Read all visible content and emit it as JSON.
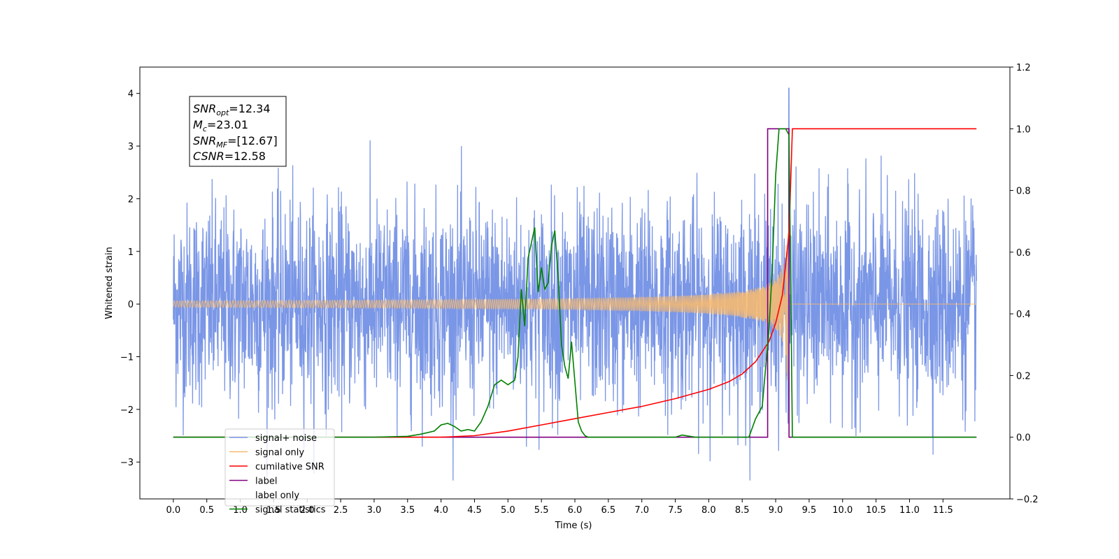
{
  "chart_data": {
    "type": "line",
    "xlabel": "Time (s)",
    "ylabel": "Whitened strain",
    "xlim": [
      -0.5,
      12.5
    ],
    "ylim": [
      -3.7,
      4.5
    ],
    "y2lim": [
      -0.2,
      1.2
    ],
    "x_ticks": [
      "0.0",
      "0.5",
      "1.0",
      "1.5",
      "2.0",
      "2.5",
      "3.0",
      "3.5",
      "4.0",
      "4.5",
      "5.0",
      "5.5",
      "6.0",
      "6.5",
      "7.0",
      "7.5",
      "8.0",
      "8.5",
      "9.0",
      "9.5",
      "10.0",
      "10.5",
      "11.0",
      "11.5"
    ],
    "y_ticks": [
      "−3",
      "−2",
      "−1",
      "0",
      "1",
      "2",
      "3",
      "4"
    ],
    "y2_ticks": [
      "−0.2",
      "0.0",
      "0.2",
      "0.4",
      "0.6",
      "0.8",
      "1.0",
      "1.2"
    ],
    "legend_position": "lower-left",
    "info_box": {
      "snr_opt": {
        "label": "SNR",
        "sub": "opt",
        "value": "=12.34"
      },
      "mc": {
        "label": "M",
        "sub": "c",
        "value": "=23.01"
      },
      "snr_mf": {
        "label": "SNR",
        "sub": "MF",
        "value": "=[12.67]"
      },
      "csnr": {
        "label": "CSNR",
        "sub": "",
        "value": "=12.58"
      }
    },
    "series": [
      {
        "name": "signal+ noise",
        "color": "#7a96e6",
        "axis": "left",
        "description_t_range": [
          0.0,
          12.0
        ],
        "amplitude_std": 0.95,
        "peak_t": 9.2,
        "peak_value": 4.1
      },
      {
        "name": "signal only",
        "color": "#f5b971",
        "axis": "left",
        "chirp_start": 5.0,
        "merger_t": 9.2,
        "max_amplitude": 1.8
      },
      {
        "name": "cumilative SNR",
        "color": "#ff0000",
        "axis": "right",
        "x": [
          0.0,
          4.0,
          4.5,
          5.0,
          5.5,
          6.0,
          6.5,
          7.0,
          7.5,
          8.0,
          8.3,
          8.5,
          8.7,
          8.9,
          9.0,
          9.1,
          9.2,
          9.25,
          12.0
        ],
        "y": [
          0.0,
          0.0,
          0.005,
          0.02,
          0.04,
          0.06,
          0.08,
          0.1,
          0.125,
          0.155,
          0.18,
          0.205,
          0.245,
          0.31,
          0.37,
          0.46,
          0.66,
          1.0,
          1.0
        ]
      },
      {
        "name": "label",
        "color": "#800080",
        "axis": "right",
        "x": [
          0.0,
          8.88,
          8.88,
          9.2,
          9.2,
          12.0
        ],
        "y": [
          0.0,
          0.0,
          1.0,
          1.0,
          0.0,
          0.0
        ]
      },
      {
        "name": "label only",
        "color": "#ffffff",
        "axis": "right",
        "x": [],
        "y": []
      },
      {
        "name": "signal statistics",
        "color": "#008000",
        "axis": "right",
        "x": [
          0.0,
          2.4,
          3.0,
          3.5,
          3.7,
          3.9,
          4.0,
          4.1,
          4.2,
          4.3,
          4.4,
          4.5,
          4.6,
          4.7,
          4.8,
          4.9,
          5.0,
          5.1,
          5.15,
          5.2,
          5.25,
          5.3,
          5.4,
          5.45,
          5.5,
          5.55,
          5.6,
          5.65,
          5.7,
          5.75,
          5.8,
          5.85,
          5.9,
          5.95,
          6.0,
          6.05,
          6.1,
          6.15,
          6.2,
          6.25,
          6.3,
          6.4,
          7.0,
          7.5,
          7.6,
          7.8,
          8.0,
          8.5,
          8.6,
          8.7,
          8.8,
          8.9,
          8.95,
          9.0,
          9.05,
          9.1,
          9.15,
          9.2,
          9.25,
          12.0
        ],
        "y": [
          0.0,
          0.0,
          0.0,
          0.003,
          0.01,
          0.02,
          0.04,
          0.045,
          0.035,
          0.02,
          0.025,
          0.02,
          0.05,
          0.1,
          0.17,
          0.185,
          0.17,
          0.185,
          0.26,
          0.48,
          0.36,
          0.58,
          0.68,
          0.47,
          0.55,
          0.48,
          0.5,
          0.62,
          0.67,
          0.52,
          0.3,
          0.23,
          0.19,
          0.31,
          0.18,
          0.05,
          0.02,
          0.005,
          0.0,
          0.0,
          0.0,
          0.0,
          0.0,
          0.0,
          0.007,
          0.0,
          0.0,
          0.0,
          0.0,
          0.06,
          0.1,
          0.35,
          0.55,
          0.85,
          1.0,
          1.0,
          1.0,
          0.98,
          0.0,
          0.0
        ]
      }
    ]
  }
}
